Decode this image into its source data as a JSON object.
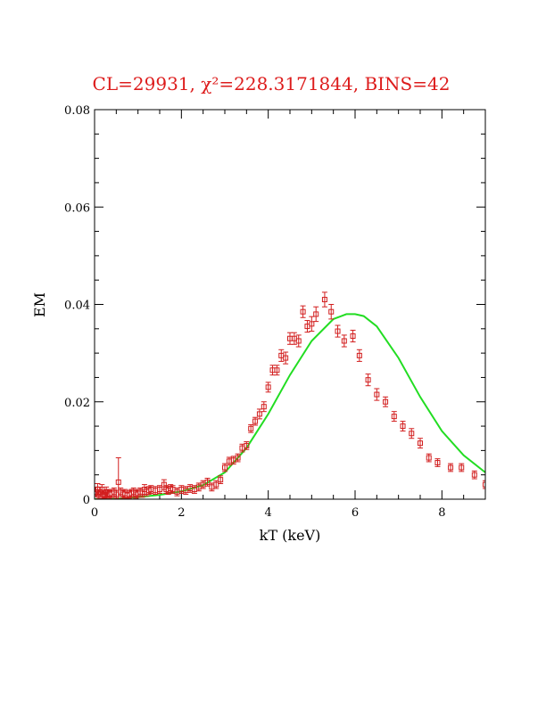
{
  "chart_data": {
    "type": "scatter",
    "title": "CL=29931, χ²=228.3171844, BINS=42",
    "xlabel": "kT (keV)",
    "ylabel": "EM",
    "xlim": [
      0,
      9
    ],
    "ylim": [
      0,
      0.08
    ],
    "xticks": [
      0,
      2,
      4,
      6,
      8
    ],
    "xtick_labels": [
      "0",
      "2",
      "4",
      "6",
      "8"
    ],
    "yticks": [
      0,
      0.02,
      0.04,
      0.06,
      0.08
    ],
    "ytick_labels": [
      "0",
      "0.02",
      "0.04",
      "0.06",
      "0.08"
    ],
    "grid": false,
    "colors": {
      "title": "#dd1c1c",
      "points": "#d21e1e",
      "fit": "#22dd22",
      "axes": "#000000"
    },
    "series": [
      {
        "kind": "points_with_errorbars",
        "x": [
          0.03,
          0.07,
          0.1,
          0.13,
          0.17,
          0.2,
          0.23,
          0.27,
          0.3,
          0.35,
          0.4,
          0.45,
          0.5,
          0.55,
          0.6,
          0.65,
          0.7,
          0.75,
          0.8,
          0.85,
          0.9,
          0.95,
          1.0,
          1.05,
          1.1,
          1.15,
          1.2,
          1.25,
          1.3,
          1.4,
          1.5,
          1.6,
          1.65,
          1.7,
          1.75,
          1.8,
          1.9,
          2.0,
          2.1,
          2.2,
          2.3,
          2.4,
          2.5,
          2.6,
          2.7,
          2.8,
          2.9,
          3.0,
          3.1,
          3.2,
          3.3,
          3.4,
          3.5,
          3.6,
          3.7,
          3.8,
          3.9,
          4.0,
          4.1,
          4.2,
          4.3,
          4.4,
          4.5,
          4.6,
          4.7,
          4.8,
          4.9,
          5.0,
          5.1,
          5.3,
          5.45,
          5.6,
          5.75,
          5.95,
          6.1,
          6.3,
          6.5,
          6.7,
          6.9,
          7.1,
          7.3,
          7.5,
          7.7,
          7.9,
          8.2,
          8.45,
          8.75,
          9.0
        ],
        "y": [
          0.0015,
          0.002,
          0.001,
          0.0015,
          0.002,
          0.001,
          0.0008,
          0.0015,
          0.0012,
          0.001,
          0.0012,
          0.0015,
          0.001,
          0.0035,
          0.0015,
          0.001,
          0.0012,
          0.0008,
          0.001,
          0.0012,
          0.0015,
          0.001,
          0.0012,
          0.0015,
          0.0012,
          0.002,
          0.0015,
          0.0018,
          0.002,
          0.0018,
          0.002,
          0.003,
          0.002,
          0.0018,
          0.0022,
          0.002,
          0.0015,
          0.002,
          0.0018,
          0.0022,
          0.002,
          0.0025,
          0.003,
          0.0035,
          0.0025,
          0.003,
          0.004,
          0.0065,
          0.0078,
          0.008,
          0.0085,
          0.0105,
          0.011,
          0.0145,
          0.016,
          0.0175,
          0.019,
          0.023,
          0.0265,
          0.0265,
          0.0295,
          0.029,
          0.033,
          0.033,
          0.0325,
          0.0385,
          0.0355,
          0.036,
          0.038,
          0.041,
          0.0385,
          0.0345,
          0.0325,
          0.0335,
          0.0295,
          0.0245,
          0.0215,
          0.02,
          0.017,
          0.015,
          0.0135,
          0.0115,
          0.0085,
          0.0075,
          0.0065,
          0.0065,
          0.005,
          0.003
        ],
        "err": [
          0.001,
          0.0012,
          0.0008,
          0.001,
          0.001,
          0.0008,
          0.0006,
          0.001,
          0.0008,
          0.0008,
          0.0008,
          0.0008,
          0.0008,
          0.005,
          0.0008,
          0.0008,
          0.0008,
          0.0006,
          0.0008,
          0.0008,
          0.0008,
          0.0008,
          0.0008,
          0.0008,
          0.0008,
          0.001,
          0.0008,
          0.0008,
          0.0008,
          0.0008,
          0.0008,
          0.001,
          0.0008,
          0.0008,
          0.0008,
          0.0008,
          0.0008,
          0.0008,
          0.0008,
          0.0008,
          0.0008,
          0.0008,
          0.0008,
          0.0008,
          0.0008,
          0.0008,
          0.0008,
          0.0008,
          0.0008,
          0.0008,
          0.0008,
          0.0008,
          0.0008,
          0.0008,
          0.0008,
          0.001,
          0.001,
          0.001,
          0.001,
          0.001,
          0.0012,
          0.0012,
          0.0012,
          0.0012,
          0.0012,
          0.0012,
          0.0012,
          0.0015,
          0.0015,
          0.0015,
          0.0015,
          0.0012,
          0.0012,
          0.0012,
          0.0012,
          0.0012,
          0.0012,
          0.001,
          0.001,
          0.001,
          0.001,
          0.001,
          0.0008,
          0.0008,
          0.0008,
          0.0008,
          0.0008,
          0.0008
        ]
      },
      {
        "kind": "fit_curve",
        "x": [
          0,
          0.5,
          1.0,
          1.5,
          2.0,
          2.5,
          3.0,
          3.5,
          4.0,
          4.5,
          5.0,
          5.5,
          5.8,
          6.0,
          6.2,
          6.5,
          7.0,
          7.5,
          8.0,
          8.5,
          9.0
        ],
        "y": [
          0,
          0.0001,
          0.0004,
          0.0009,
          0.0016,
          0.0029,
          0.0055,
          0.0105,
          0.0175,
          0.0255,
          0.0325,
          0.037,
          0.038,
          0.038,
          0.0376,
          0.0355,
          0.029,
          0.021,
          0.014,
          0.009,
          0.0055
        ]
      }
    ]
  }
}
